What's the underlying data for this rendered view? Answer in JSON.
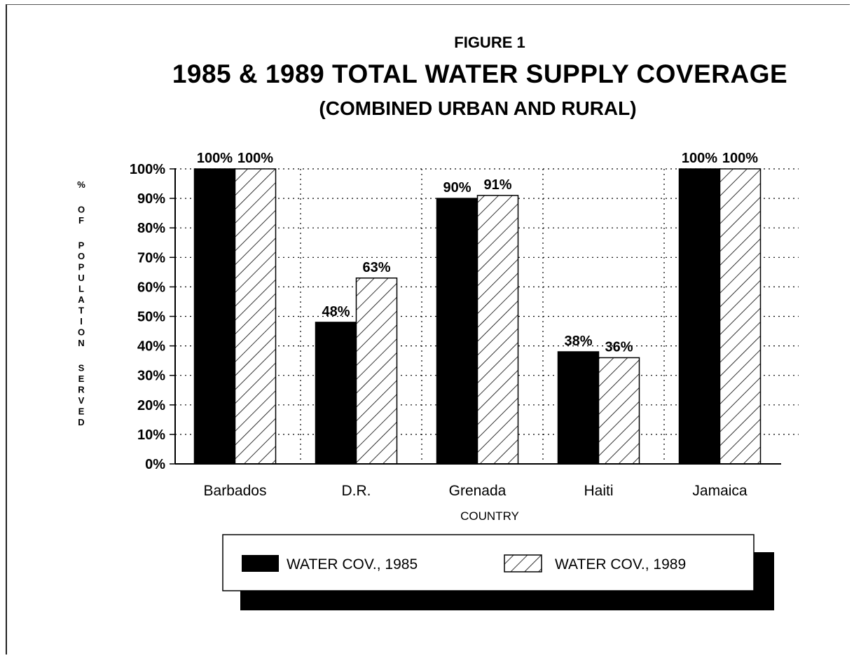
{
  "chart_data": {
    "type": "bar",
    "figure_label": "FIGURE 1",
    "title": "1985 & 1989 TOTAL WATER SUPPLY COVERAGE",
    "subtitle": "(COMBINED URBAN AND RURAL)",
    "xlabel": "COUNTRY",
    "ylabel": "% OF POPULATION SERVED",
    "categories": [
      "Barbados",
      "D.R.",
      "Grenada",
      "Haiti",
      "Jamaica"
    ],
    "series": [
      {
        "name": "WATER COV., 1985",
        "values": [
          100,
          48,
          90,
          38,
          100
        ],
        "labels": [
          "100%",
          "48%",
          "90%",
          "38%",
          "100%"
        ],
        "fill": "#000000"
      },
      {
        "name": "WATER COV., 1989",
        "values": [
          100,
          63,
          91,
          36,
          100
        ],
        "labels": [
          "100%",
          "63%",
          "91%",
          "36%",
          "100%"
        ],
        "fill": "hatch"
      }
    ],
    "ylim": [
      0,
      100
    ],
    "yticks": [
      0,
      10,
      20,
      30,
      40,
      50,
      60,
      70,
      80,
      90,
      100
    ],
    "ytick_labels": [
      "0%",
      "10%",
      "20%",
      "30%",
      "40%",
      "50%",
      "60%",
      "70%",
      "80%",
      "90%",
      "100%"
    ],
    "grid": "dotted",
    "legend_position": "bottom"
  }
}
